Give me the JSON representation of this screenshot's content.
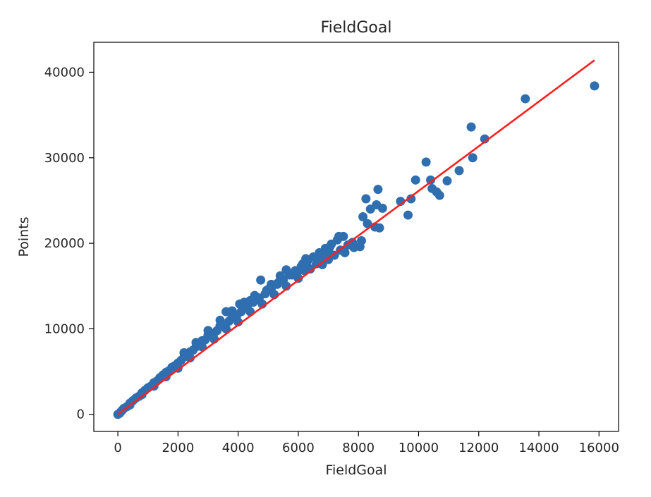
{
  "chart_data": {
    "type": "scatter",
    "title": "FieldGoal",
    "xlabel": "FieldGoal",
    "ylabel": "Points",
    "xlim": [
      -800,
      16650
    ],
    "ylim": [
      -2000,
      43500
    ],
    "x_ticks": [
      0,
      2000,
      4000,
      6000,
      8000,
      10000,
      12000,
      14000,
      16000
    ],
    "x_tick_labels": [
      "0",
      "2000",
      "4000",
      "6000",
      "8000",
      "10000",
      "12000",
      "14000",
      "16000"
    ],
    "y_ticks": [
      0,
      10000,
      20000,
      30000,
      40000
    ],
    "y_tick_labels": [
      "0",
      "10000",
      "20000",
      "30000",
      "40000"
    ],
    "grid": false,
    "legend": "none",
    "series": [
      {
        "kind": "scatter",
        "color": "#2f6fb0",
        "points": [
          [
            15850,
            38400
          ],
          [
            13550,
            36900
          ],
          [
            12200,
            32200
          ],
          [
            11750,
            33600
          ],
          [
            11800,
            30000
          ],
          [
            11350,
            28500
          ],
          [
            10950,
            27300
          ],
          [
            10600,
            26000
          ],
          [
            10700,
            25600
          ],
          [
            10450,
            26400
          ],
          [
            10400,
            27400
          ],
          [
            10250,
            29500
          ],
          [
            9900,
            27400
          ],
          [
            9750,
            25200
          ],
          [
            9400,
            24900
          ],
          [
            9650,
            23300
          ],
          [
            8650,
            26300
          ],
          [
            8800,
            24100
          ],
          [
            8600,
            24500
          ],
          [
            8700,
            21800
          ],
          [
            8550,
            21900
          ],
          [
            8300,
            22300
          ],
          [
            8250,
            25200
          ],
          [
            8150,
            23100
          ],
          [
            8400,
            24000
          ],
          [
            8050,
            19600
          ],
          [
            7850,
            19500
          ],
          [
            7650,
            19800
          ],
          [
            7550,
            18900
          ],
          [
            7350,
            20800
          ],
          [
            7050,
            19600
          ],
          [
            7050,
            18800
          ],
          [
            6800,
            17500
          ],
          [
            6850,
            18400
          ],
          [
            6650,
            18000
          ],
          [
            6250,
            18200
          ],
          [
            6200,
            16800
          ],
          [
            6150,
            17600
          ],
          [
            5950,
            16400
          ],
          [
            5600,
            16900
          ],
          [
            5400,
            16200
          ],
          [
            5300,
            15300
          ],
          [
            5100,
            15200
          ],
          [
            4950,
            14500
          ],
          [
            4750,
            15700
          ],
          [
            4550,
            13900
          ],
          [
            4400,
            13300
          ],
          [
            4200,
            13100
          ],
          [
            4050,
            12900
          ],
          [
            3950,
            11500
          ],
          [
            3800,
            12100
          ],
          [
            3600,
            12000
          ],
          [
            3400,
            11000
          ],
          [
            3200,
            9500
          ],
          [
            3000,
            9300
          ],
          [
            2800,
            8600
          ],
          [
            2600,
            7900
          ],
          [
            2400,
            7300
          ],
          [
            2200,
            6700
          ],
          [
            2000,
            6000
          ],
          [
            1800,
            5500
          ],
          [
            1600,
            4900
          ],
          [
            1400,
            4300
          ],
          [
            1200,
            3700
          ],
          [
            1000,
            3100
          ],
          [
            800,
            2500
          ],
          [
            600,
            1900
          ],
          [
            400,
            1300
          ],
          [
            200,
            700
          ],
          [
            0,
            0
          ],
          [
            100,
            300
          ],
          [
            50,
            100
          ],
          [
            150,
            500
          ],
          [
            300,
            900
          ],
          [
            500,
            1600
          ],
          [
            700,
            2100
          ],
          [
            900,
            2800
          ],
          [
            1100,
            3300
          ],
          [
            1300,
            3900
          ],
          [
            1500,
            4600
          ],
          [
            1700,
            5100
          ],
          [
            1900,
            5700
          ],
          [
            2100,
            6300
          ],
          [
            2300,
            6900
          ],
          [
            2500,
            7500
          ],
          [
            2700,
            8100
          ],
          [
            2900,
            8700
          ],
          [
            3100,
            9200
          ],
          [
            3300,
            9800
          ],
          [
            3500,
            10300
          ],
          [
            3700,
            10900
          ],
          [
            3900,
            11400
          ],
          [
            4100,
            12000
          ],
          [
            4300,
            12500
          ],
          [
            4500,
            13100
          ],
          [
            4700,
            13600
          ],
          [
            4900,
            14100
          ],
          [
            5100,
            14700
          ],
          [
            5300,
            15200
          ],
          [
            5500,
            15700
          ],
          [
            5700,
            16300
          ],
          [
            5900,
            16800
          ],
          [
            6100,
            17300
          ],
          [
            6300,
            17900
          ],
          [
            6500,
            18400
          ],
          [
            6700,
            18900
          ],
          [
            6900,
            19400
          ],
          [
            7100,
            19900
          ],
          [
            7300,
            20400
          ],
          [
            7500,
            20800
          ],
          [
            2000,
            5400
          ],
          [
            2400,
            6600
          ],
          [
            2800,
            7900
          ],
          [
            3200,
            8800
          ],
          [
            3600,
            10000
          ],
          [
            4000,
            10800
          ],
          [
            4400,
            12000
          ],
          [
            4800,
            12900
          ],
          [
            5200,
            14000
          ],
          [
            5600,
            15000
          ],
          [
            6000,
            15900
          ],
          [
            6400,
            17000
          ],
          [
            6800,
            18000
          ],
          [
            7200,
            18600
          ],
          [
            1600,
            4400
          ],
          [
            1200,
            3300
          ],
          [
            800,
            2300
          ],
          [
            400,
            1100
          ],
          [
            2200,
            7200
          ],
          [
            2600,
            8400
          ],
          [
            3000,
            9800
          ],
          [
            3400,
            10400
          ],
          [
            3800,
            11600
          ],
          [
            4200,
            12600
          ],
          [
            4600,
            13400
          ],
          [
            5000,
            14600
          ],
          [
            5400,
            15700
          ],
          [
            5800,
            16300
          ],
          [
            6200,
            17200
          ],
          [
            6600,
            17600
          ],
          [
            7000,
            18100
          ],
          [
            7400,
            19200
          ],
          [
            7800,
            20100
          ],
          [
            8100,
            20300
          ]
        ]
      },
      {
        "kind": "line",
        "color": "#ff2020",
        "points": [
          [
            0,
            0
          ],
          [
            15850,
            41400
          ]
        ]
      }
    ]
  }
}
